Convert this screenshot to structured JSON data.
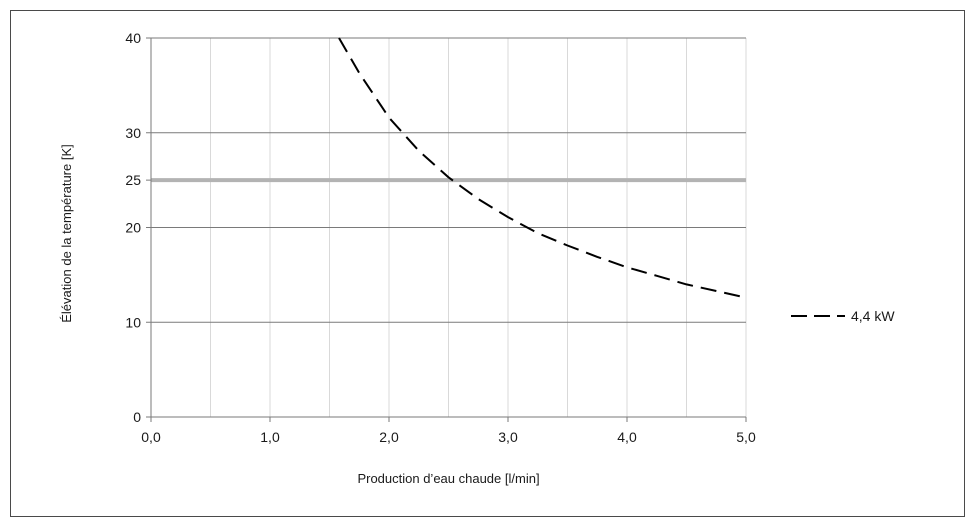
{
  "chart_data": {
    "type": "line",
    "xlabel": "Production d’eau chaude [l/min]",
    "ylabel": "Élévation de la température [K]",
    "xlim": [
      0,
      5
    ],
    "ylim": [
      0,
      40
    ],
    "x_ticks": [
      "0,0",
      "1,0",
      "2,0",
      "3,0",
      "4,0",
      "5,0"
    ],
    "x_tick_values": [
      0,
      1,
      2,
      3,
      4,
      5
    ],
    "x_minor_gridlines": [
      0.5,
      1.5,
      2.5,
      3.5,
      4.5
    ],
    "y_ticks": [
      "0",
      "10",
      "20",
      "25",
      "30",
      "40"
    ],
    "y_tick_values": [
      0,
      10,
      20,
      25,
      30,
      40
    ],
    "reference_line": {
      "y": 25,
      "color": "#b3b3b3"
    },
    "grid": true,
    "legend_position": "right",
    "series": [
      {
        "name": "4,4 kW",
        "style": "dashed",
        "color": "#000000",
        "x": [
          1.58,
          1.75,
          2.0,
          2.25,
          2.5,
          2.75,
          3.0,
          3.25,
          3.5,
          3.75,
          4.0,
          4.25,
          4.5,
          4.75,
          5.0
        ],
        "y": [
          40,
          36.3,
          31.6,
          28.1,
          25.3,
          23.0,
          21.1,
          19.4,
          18.1,
          16.9,
          15.8,
          14.9,
          14.0,
          13.3,
          12.6
        ]
      }
    ]
  }
}
